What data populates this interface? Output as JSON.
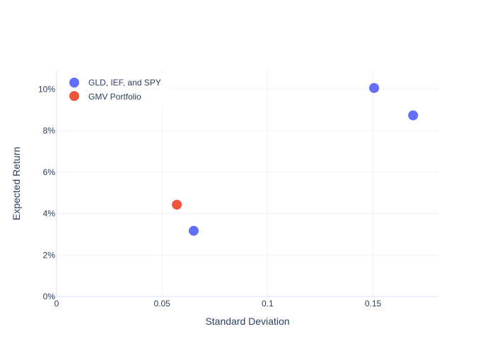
{
  "chart_data": {
    "type": "scatter",
    "xlabel": "Standard Deviation",
    "ylabel": "Expected Return",
    "xlim": [
      0,
      0.181
    ],
    "ylim": [
      0,
      0.109
    ],
    "x_ticks": [
      0,
      0.05,
      0.1,
      0.15
    ],
    "x_tick_labels": [
      "0",
      "0.05",
      "0.1",
      "0.15"
    ],
    "y_ticks": [
      0,
      0.02,
      0.04,
      0.06,
      0.08,
      0.1
    ],
    "y_tick_labels": [
      "0%",
      "2%",
      "4%",
      "6%",
      "8%",
      "10%"
    ],
    "grid": true,
    "legend_position": "top-left",
    "series": [
      {
        "name": "GLD, IEF, and SPY",
        "color": "#636efa",
        "x": [
          0.065,
          0.1505,
          0.169
        ],
        "y": [
          0.0317,
          0.1006,
          0.0874
        ]
      },
      {
        "name": "GMV Portfolio",
        "color": "#ef553b",
        "x": [
          0.057
        ],
        "y": [
          0.0443
        ]
      }
    ]
  }
}
